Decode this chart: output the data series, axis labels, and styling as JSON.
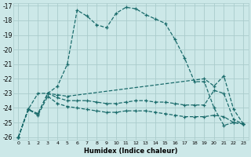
{
  "xlabel": "Humidex (Indice chaleur)",
  "xlim": [
    -0.5,
    23.5
  ],
  "ylim": [
    -26.2,
    -16.8
  ],
  "yticks": [
    -26,
    -25,
    -24,
    -23,
    -22,
    -21,
    -20,
    -19,
    -18,
    -17
  ],
  "xticks": [
    0,
    1,
    2,
    3,
    4,
    5,
    6,
    7,
    8,
    9,
    10,
    11,
    12,
    13,
    14,
    15,
    16,
    17,
    18,
    19,
    20,
    21,
    22,
    23
  ],
  "bg_color": "#cce8e8",
  "grid_color": "#aacccc",
  "line_color": "#1a6b6b",
  "line1_x": [
    0,
    1,
    2,
    3,
    4,
    5,
    6,
    7,
    8,
    9,
    10,
    11,
    12,
    13,
    14,
    15,
    16,
    17,
    18,
    19,
    20,
    21,
    22,
    23
  ],
  "line1_y": [
    -26.0,
    -24.1,
    -24.4,
    -23.0,
    -22.5,
    -21.0,
    -17.3,
    -17.7,
    -18.3,
    -18.5,
    -17.5,
    -17.1,
    -17.2,
    -17.6,
    -17.9,
    -18.2,
    -19.3,
    -20.6,
    -22.2,
    -22.2,
    -24.0,
    -25.2,
    -25.0,
    -25.1
  ],
  "line2_x": [
    0,
    1,
    2,
    3,
    4,
    5,
    19,
    20,
    21,
    22,
    23
  ],
  "line2_y": [
    -26.0,
    -24.1,
    -23.0,
    -23.0,
    -23.1,
    -23.2,
    -22.0,
    -22.5,
    -21.8,
    -24.1,
    -25.1
  ],
  "line3_x": [
    0,
    1,
    2,
    3,
    4,
    5,
    6,
    7,
    8,
    9,
    10,
    11,
    12,
    13,
    14,
    15,
    16,
    17,
    18,
    19,
    20,
    21,
    22,
    23
  ],
  "line3_y": [
    -26.0,
    -24.1,
    -24.4,
    -23.0,
    -23.3,
    -23.5,
    -23.5,
    -23.5,
    -23.6,
    -23.7,
    -23.7,
    -23.6,
    -23.5,
    -23.5,
    -23.6,
    -23.6,
    -23.7,
    -23.8,
    -23.8,
    -23.8,
    -22.8,
    -23.0,
    -24.8,
    -25.1
  ],
  "line4_x": [
    0,
    1,
    2,
    3,
    4,
    5,
    6,
    7,
    8,
    9,
    10,
    11,
    12,
    13,
    14,
    15,
    16,
    17,
    18,
    19,
    20,
    21,
    22,
    23
  ],
  "line4_y": [
    -26.0,
    -24.1,
    -24.5,
    -23.2,
    -23.7,
    -23.9,
    -24.0,
    -24.1,
    -24.2,
    -24.3,
    -24.3,
    -24.2,
    -24.2,
    -24.2,
    -24.3,
    -24.4,
    -24.5,
    -24.6,
    -24.6,
    -24.6,
    -24.5,
    -24.6,
    -25.0,
    -25.1
  ]
}
